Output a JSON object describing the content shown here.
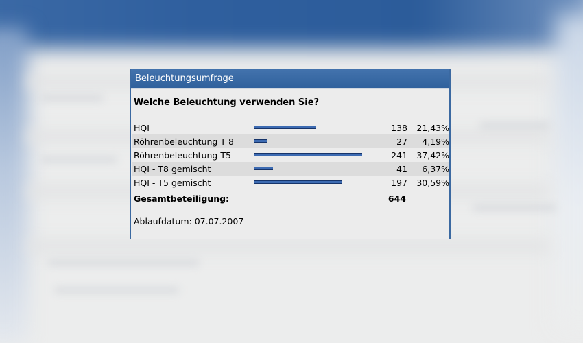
{
  "poll": {
    "title": "Beleuchtungsumfrage",
    "question": "Welche Beleuchtung verwenden Sie?",
    "options": [
      {
        "label": "HQI",
        "count": "138",
        "percent": "21,43%",
        "share": 0.2143
      },
      {
        "label": "Röhrenbeleuchtung T 8",
        "count": "27",
        "percent": "4,19%",
        "share": 0.0419
      },
      {
        "label": "Röhrenbeleuchtung T5",
        "count": "241",
        "percent": "37,42%",
        "share": 0.3742
      },
      {
        "label": "HQI - T8 gemischt",
        "count": "41",
        "percent": "6,37%",
        "share": 0.0637
      },
      {
        "label": "HQI - T5 gemischt",
        "count": "197",
        "percent": "30,59%",
        "share": 0.3059
      }
    ],
    "total_label": "Gesamtbeteiligung:",
    "total_value": "644",
    "expiry": "Ablaufdatum: 07.07.2007"
  },
  "colors": {
    "header": "#3b69a1",
    "bar": "#3d6bb2",
    "panel_bg": "#ececec",
    "row_alt": "#dcdcdc"
  }
}
